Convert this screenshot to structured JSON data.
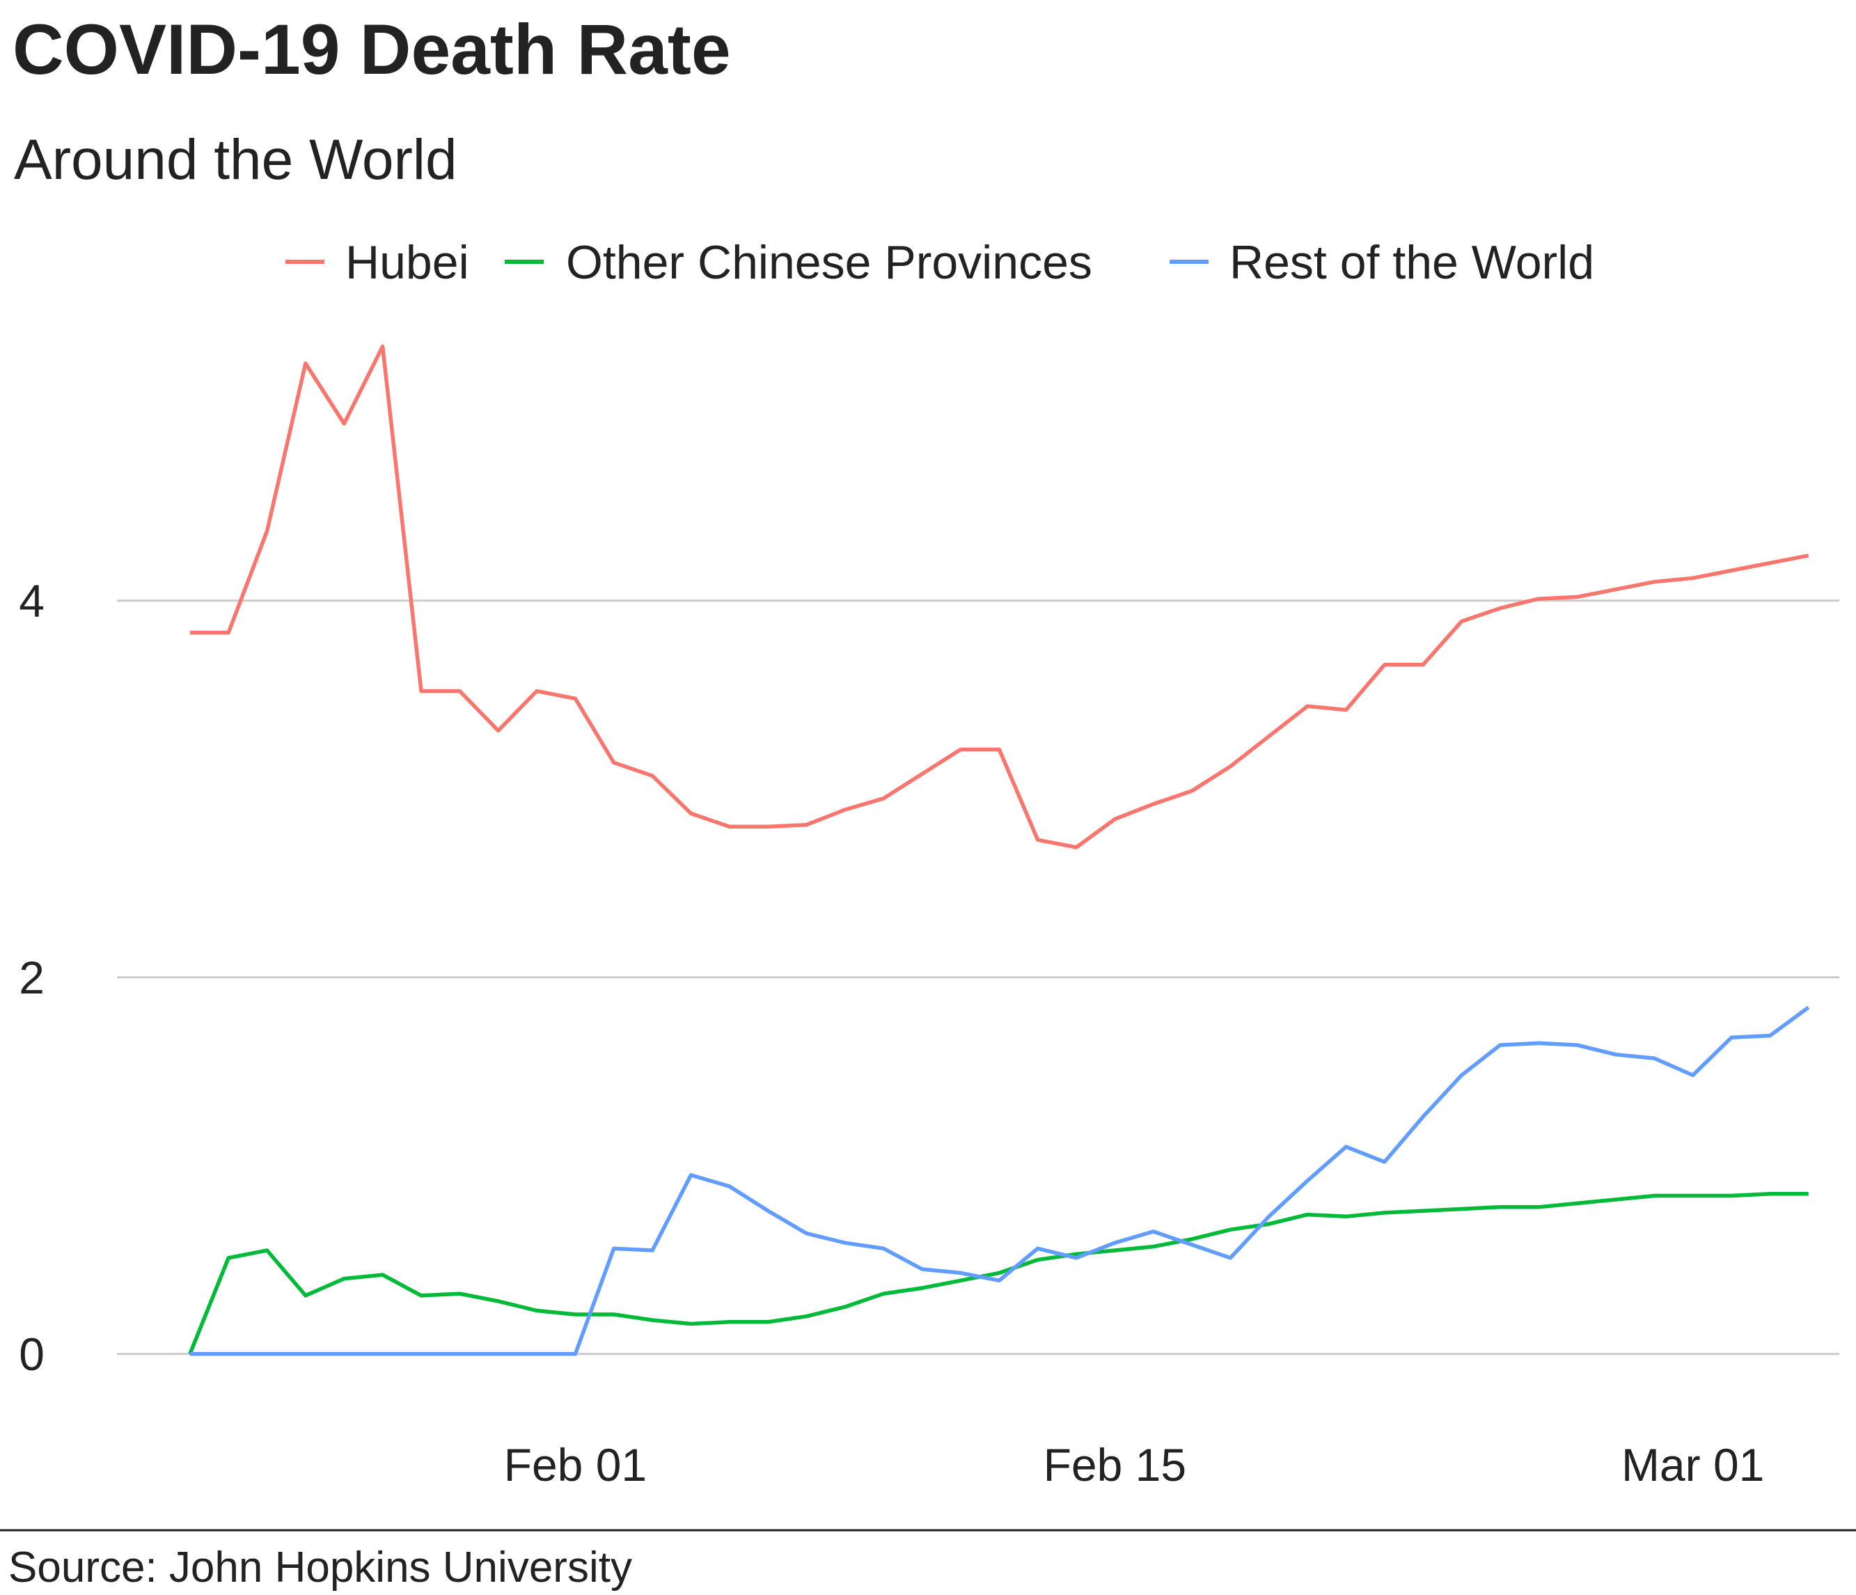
{
  "colors": {
    "hubei": "#F8766D",
    "other_chinese": "#00BA38",
    "rest_of_world": "#619CFF",
    "gridline": "#cbcbcb",
    "text": "#222222"
  },
  "chart_data": {
    "type": "line",
    "title": "COVID-19 Death Rate",
    "subtitle": "Around the World",
    "caption": "Source: John Hopkins University",
    "xlabel": "",
    "ylabel": "",
    "x_start_date": "2020-01-22",
    "x_dates_count": 43,
    "xlim_day_index": [
      -2.4,
      42.8
    ],
    "ylim": [
      -0.5,
      5.6
    ],
    "x_ticks": [
      {
        "label": "Feb 01",
        "day_index": 10
      },
      {
        "label": "Feb 15",
        "day_index": 24
      },
      {
        "label": "Mar 01",
        "day_index": 39
      }
    ],
    "y_ticks": [
      {
        "label": "0",
        "value": 0
      },
      {
        "label": "2",
        "value": 2
      },
      {
        "label": "4",
        "value": 4
      }
    ],
    "grid": "horizontal-major",
    "legend_position": "top",
    "series": [
      {
        "name": "Hubei",
        "color_key": "hubei",
        "values": [
          3.83,
          3.83,
          4.37,
          5.26,
          4.94,
          5.35,
          3.52,
          3.52,
          3.31,
          3.52,
          3.48,
          3.14,
          3.07,
          2.87,
          2.8,
          2.8,
          2.81,
          2.89,
          2.95,
          3.08,
          3.21,
          3.21,
          2.73,
          2.69,
          2.84,
          2.92,
          2.99,
          3.12,
          3.28,
          3.44,
          3.42,
          3.66,
          3.66,
          3.89,
          3.96,
          4.01,
          4.02,
          4.06,
          4.1,
          4.12,
          4.16,
          4.2,
          4.24
        ]
      },
      {
        "name": "Other Chinese Provinces",
        "color_key": "other_chinese",
        "values": [
          0.0,
          0.51,
          0.55,
          0.31,
          0.4,
          0.42,
          0.31,
          0.32,
          0.28,
          0.23,
          0.21,
          0.21,
          0.18,
          0.16,
          0.17,
          0.17,
          0.2,
          0.25,
          0.32,
          0.35,
          0.39,
          0.43,
          0.5,
          0.53,
          0.55,
          0.57,
          0.61,
          0.66,
          0.69,
          0.74,
          0.73,
          0.75,
          0.76,
          0.77,
          0.78,
          0.78,
          0.8,
          0.82,
          0.84,
          0.84,
          0.84,
          0.85,
          0.85
        ]
      },
      {
        "name": "Rest of the World",
        "color_key": "rest_of_world",
        "values": [
          0.0,
          0.0,
          0.0,
          0.0,
          0.0,
          0.0,
          0.0,
          0.0,
          0.0,
          0.0,
          0.0,
          0.56,
          0.55,
          0.95,
          0.89,
          0.76,
          0.64,
          0.59,
          0.56,
          0.45,
          0.43,
          0.39,
          0.56,
          0.51,
          0.59,
          0.65,
          0.58,
          0.51,
          0.73,
          0.92,
          1.1,
          1.02,
          1.26,
          1.48,
          1.64,
          1.65,
          1.64,
          1.59,
          1.57,
          1.48,
          1.68,
          1.69,
          1.84
        ]
      }
    ]
  }
}
